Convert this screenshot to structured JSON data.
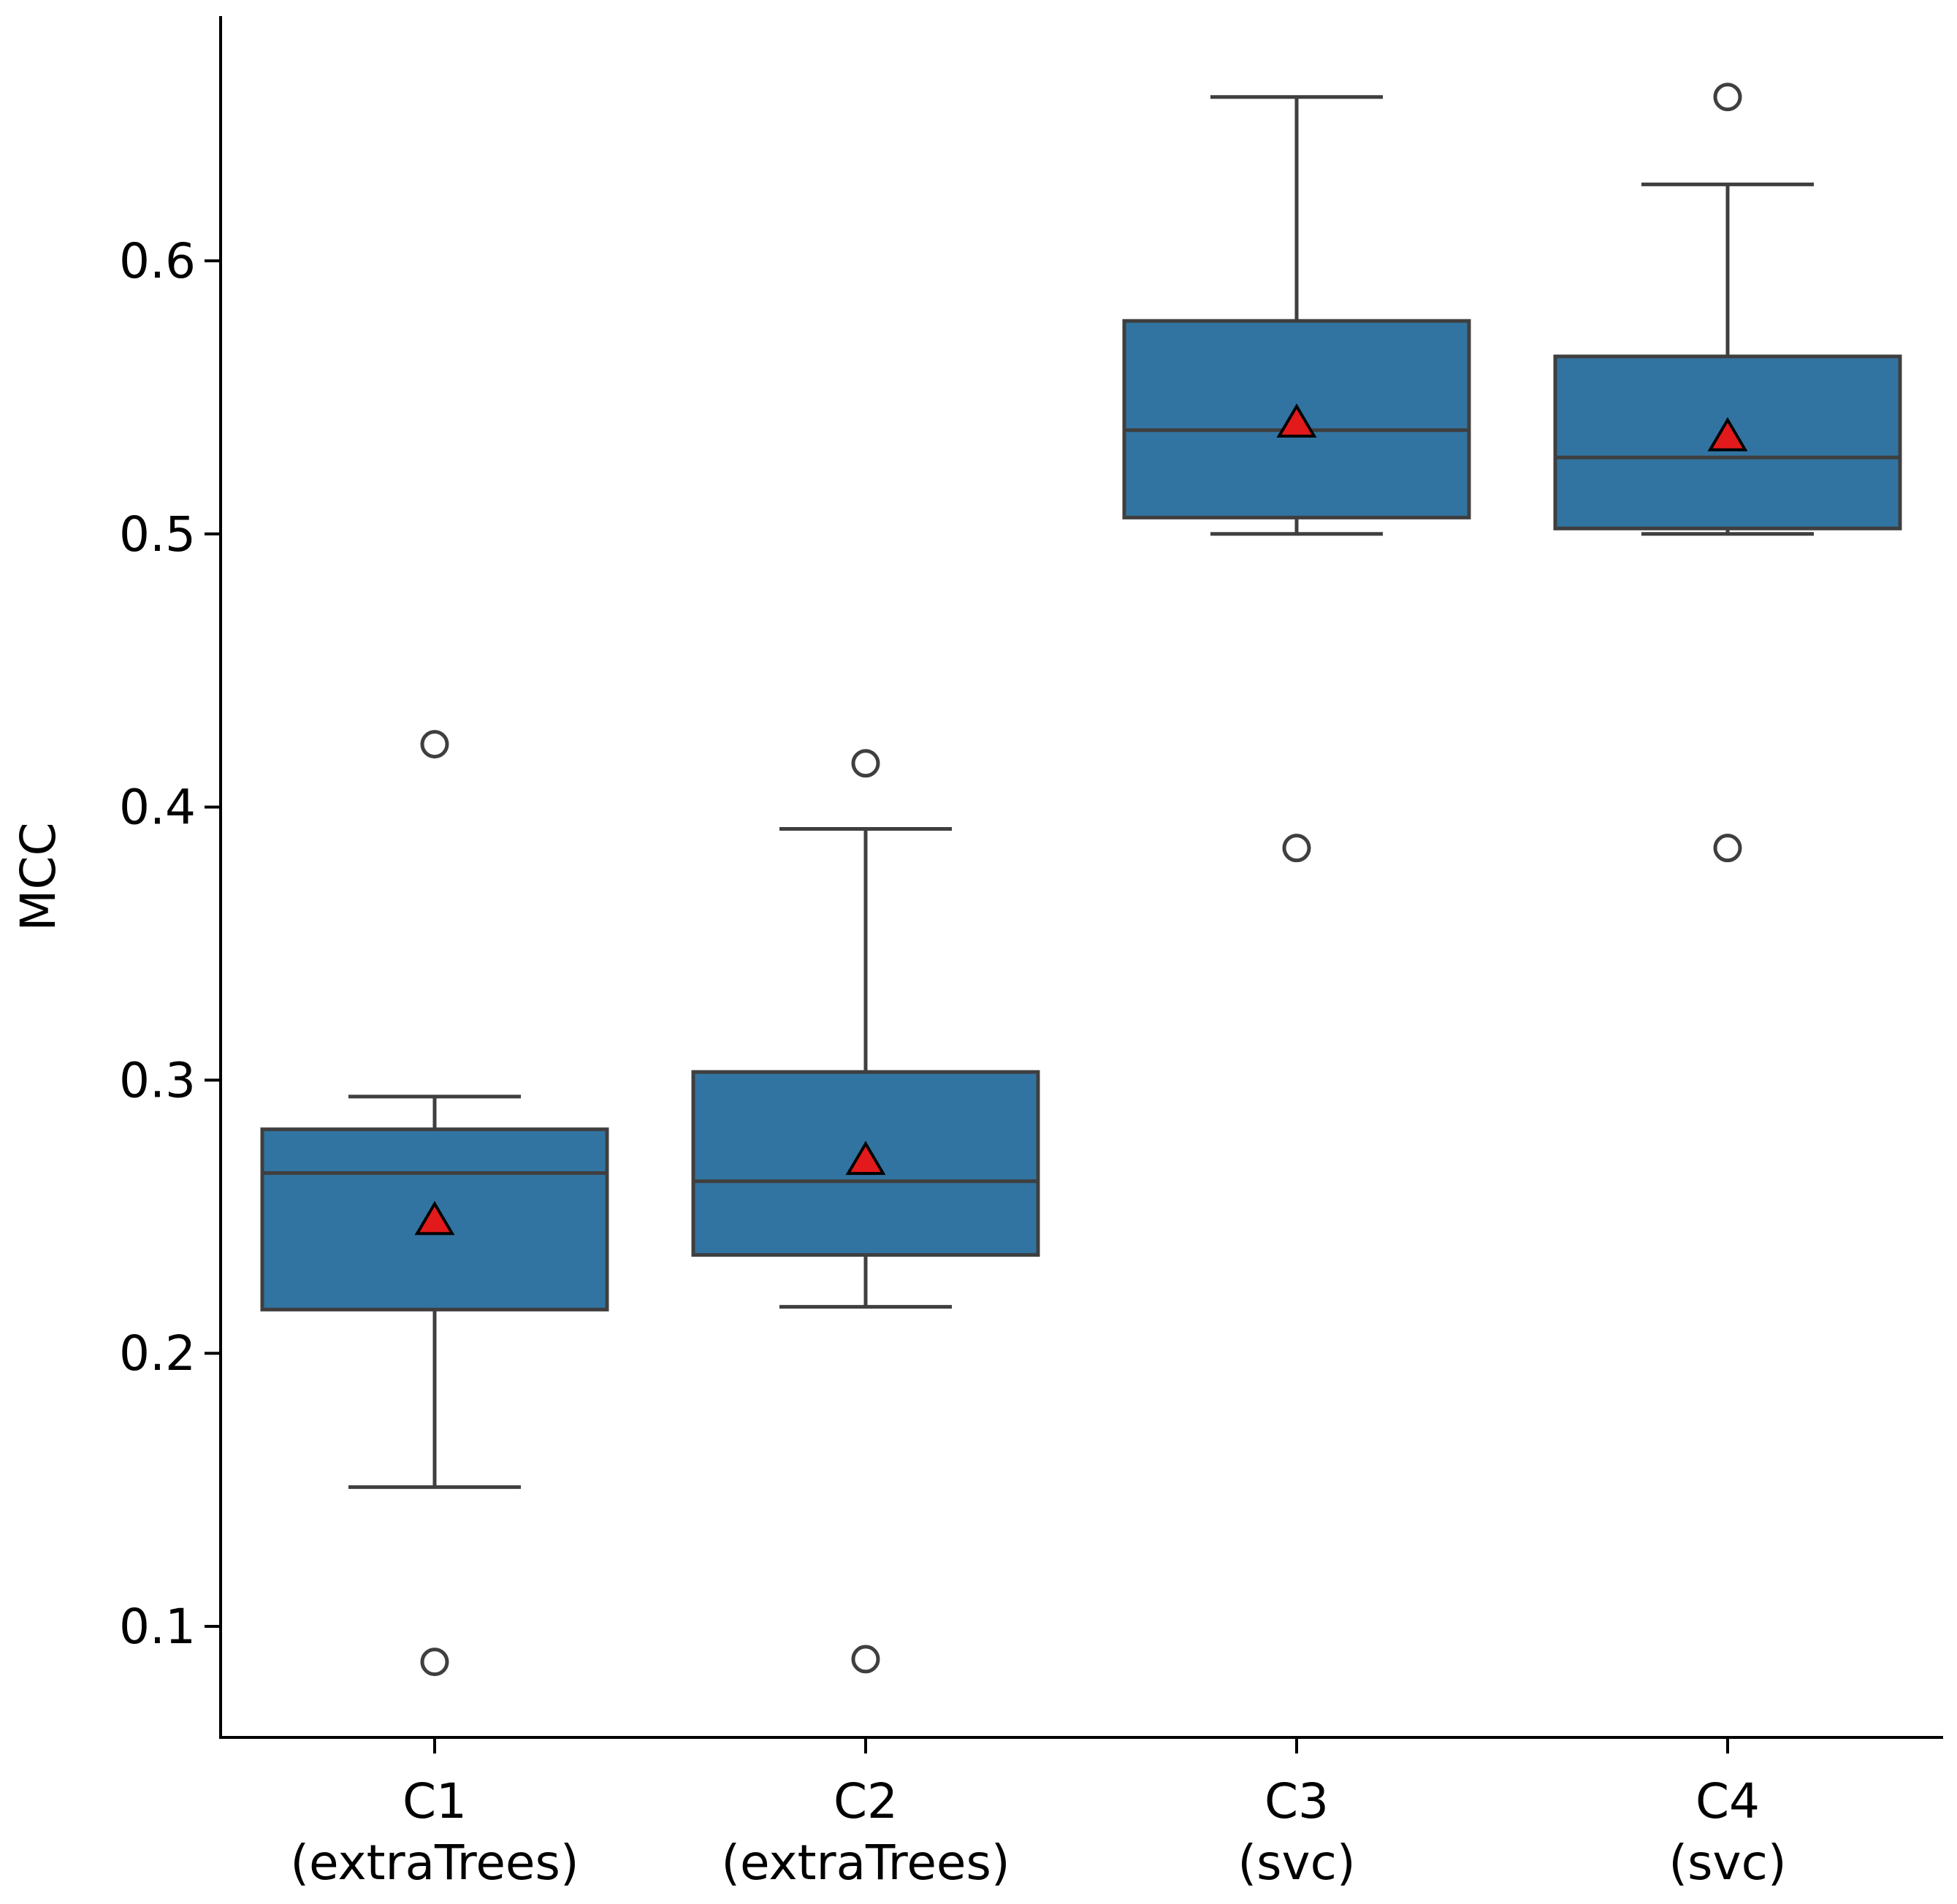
{
  "chart_data": {
    "type": "box",
    "title": "",
    "xlabel": "",
    "ylabel": "MCC",
    "ylim": [
      0.06,
      0.69
    ],
    "yticks": [
      {
        "value": 0.1,
        "label": "0.1"
      },
      {
        "value": 0.2,
        "label": "0.2"
      },
      {
        "value": 0.3,
        "label": "0.3"
      },
      {
        "value": 0.4,
        "label": "0.4"
      },
      {
        "value": 0.5,
        "label": "0.5"
      },
      {
        "value": 0.6,
        "label": "0.6"
      }
    ],
    "categories": [
      {
        "line1": "C1",
        "line2": "(extraTrees)"
      },
      {
        "line1": "C2",
        "line2": "(extraTrees)"
      },
      {
        "line1": "C3",
        "line2": "(svc)"
      },
      {
        "line1": "C4",
        "line2": "(svc)"
      }
    ],
    "boxes": [
      {
        "whisker_low": 0.151,
        "q1": 0.216,
        "median": 0.266,
        "q3": 0.282,
        "whisker_high": 0.294,
        "mean": 0.248,
        "outliers": [
          0.423,
          0.087
        ]
      },
      {
        "whisker_low": 0.217,
        "q1": 0.236,
        "median": 0.263,
        "q3": 0.303,
        "whisker_high": 0.392,
        "mean": 0.27,
        "outliers": [
          0.416,
          0.088
        ]
      },
      {
        "whisker_low": 0.5,
        "q1": 0.506,
        "median": 0.538,
        "q3": 0.578,
        "whisker_high": 0.66,
        "mean": 0.54,
        "outliers": [
          0.385
        ]
      },
      {
        "whisker_low": 0.5,
        "q1": 0.502,
        "median": 0.528,
        "q3": 0.565,
        "whisker_high": 0.628,
        "mean": 0.535,
        "outliers": [
          0.66,
          0.385
        ]
      }
    ],
    "colors": {
      "box_fill": "#3274a1",
      "box_edge": "#3f3f3f",
      "mean_marker_fill": "#e31a1c",
      "mean_marker_edge": "#000000",
      "outlier_edge": "#3f3f3f",
      "axis": "#000000"
    }
  }
}
